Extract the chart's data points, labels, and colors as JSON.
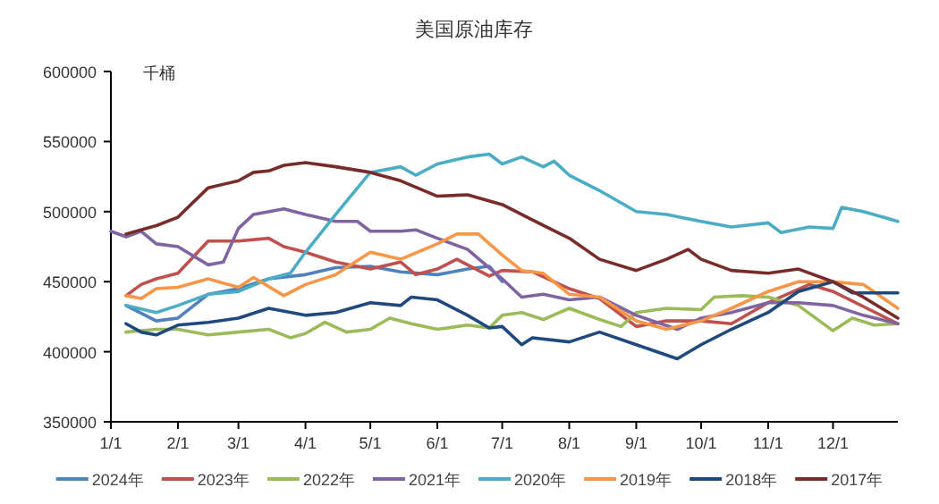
{
  "chart_data": {
    "type": "line",
    "title": "美国原油库存",
    "ylabel": "千桶",
    "xlim": [
      "--01-01",
      "--12-31"
    ],
    "ylim": [
      350000,
      600000
    ],
    "yticks": [
      350000,
      400000,
      450000,
      500000,
      550000,
      600000
    ],
    "xticks": [
      {
        "value": "--01-01",
        "label": "1/1"
      },
      {
        "value": "--02-01",
        "label": "2/1"
      },
      {
        "value": "--03-01",
        "label": "3/1"
      },
      {
        "value": "--04-01",
        "label": "4/1"
      },
      {
        "value": "--05-01",
        "label": "5/1"
      },
      {
        "value": "--06-01",
        "label": "6/1"
      },
      {
        "value": "--07-01",
        "label": "7/1"
      },
      {
        "value": "--08-01",
        "label": "8/1"
      },
      {
        "value": "--09-01",
        "label": "9/1"
      },
      {
        "value": "--10-01",
        "label": "10/1"
      },
      {
        "value": "--11-01",
        "label": "11/1"
      },
      {
        "value": "--12-01",
        "label": "12/1"
      }
    ],
    "grid": false,
    "legend": "bottom",
    "marker": "none",
    "line_style": "solid",
    "series": [
      {
        "name": "2024年",
        "color": "#4f81bd",
        "x": [
          "--01-08",
          "--01-22",
          "--02-01",
          "--02-15",
          "--03-01",
          "--03-15",
          "--04-01",
          "--04-15",
          "--05-01",
          "--05-15",
          "--06-01",
          "--06-15",
          "--06-25",
          "--07-01"
        ],
        "values": [
          433000,
          422000,
          424000,
          441000,
          445000,
          452000,
          455000,
          460000,
          461000,
          457000,
          455000,
          459000,
          461000,
          450000
        ]
      },
      {
        "name": "2023年",
        "color": "#c0504d",
        "x": [
          "--01-08",
          "--01-15",
          "--01-22",
          "--02-01",
          "--02-15",
          "--03-01",
          "--03-15",
          "--03-22",
          "--04-01",
          "--04-15",
          "--05-01",
          "--05-15",
          "--05-22",
          "--06-01",
          "--06-10",
          "--06-25",
          "--07-01",
          "--07-15",
          "--08-01",
          "--08-15",
          "--09-01",
          "--09-15",
          "--10-01",
          "--10-15",
          "--11-01",
          "--11-20",
          "--12-01",
          "--12-31"
        ],
        "values": [
          440000,
          448000,
          452000,
          456000,
          479000,
          479000,
          481000,
          475000,
          471000,
          464000,
          459000,
          464000,
          455000,
          459000,
          466000,
          454000,
          458000,
          457000,
          445000,
          438000,
          418000,
          422000,
          422000,
          420000,
          435000,
          448000,
          443000,
          420000
        ]
      },
      {
        "name": "2022年",
        "color": "#9bbb59",
        "x": [
          "--01-08",
          "--01-22",
          "--02-01",
          "--02-15",
          "--03-01",
          "--03-15",
          "--03-25",
          "--04-01",
          "--04-10",
          "--04-20",
          "--05-01",
          "--05-10",
          "--05-20",
          "--06-01",
          "--06-15",
          "--06-25",
          "--07-01",
          "--07-10",
          "--07-20",
          "--08-01",
          "--08-15",
          "--08-25",
          "--09-01",
          "--09-15",
          "--10-01",
          "--10-07",
          "--10-20",
          "--11-01",
          "--11-15",
          "--12-01",
          "--12-10",
          "--12-20",
          "--12-31"
        ],
        "values": [
          414000,
          416000,
          416000,
          412000,
          414000,
          416000,
          410000,
          413000,
          421000,
          414000,
          416000,
          424000,
          420000,
          416000,
          419000,
          417000,
          426000,
          428000,
          423000,
          431000,
          423000,
          418000,
          428000,
          431000,
          430000,
          439000,
          440000,
          439000,
          433000,
          415000,
          424000,
          419000,
          420000
        ]
      },
      {
        "name": "2021年",
        "color": "#8064a2",
        "x": [
          "--01-01",
          "--01-08",
          "--01-15",
          "--01-22",
          "--02-01",
          "--02-15",
          "--02-22",
          "--03-01",
          "--03-08",
          "--03-22",
          "--04-01",
          "--04-15",
          "--04-25",
          "--05-01",
          "--05-15",
          "--05-22",
          "--06-01",
          "--06-15",
          "--07-01",
          "--07-10",
          "--07-20",
          "--08-01",
          "--08-15",
          "--09-01",
          "--09-20",
          "--10-01",
          "--10-15",
          "--11-01",
          "--11-15",
          "--12-01",
          "--12-15",
          "--12-31"
        ],
        "values": [
          486000,
          482000,
          486000,
          477000,
          475000,
          462000,
          464000,
          488000,
          498000,
          502000,
          498000,
          493000,
          493000,
          486000,
          486000,
          487000,
          481000,
          473000,
          452000,
          439000,
          441000,
          437000,
          439000,
          426000,
          416000,
          424000,
          428000,
          435000,
          435000,
          433000,
          426000,
          420000
        ]
      },
      {
        "name": "2020年",
        "color": "#4bacc6",
        "x": [
          "--01-08",
          "--01-22",
          "--02-01",
          "--02-15",
          "--03-01",
          "--03-15",
          "--03-25",
          "--04-01",
          "--04-15",
          "--05-01",
          "--05-15",
          "--05-22",
          "--06-01",
          "--06-15",
          "--06-25",
          "--07-01",
          "--07-10",
          "--07-20",
          "--07-25",
          "--08-01",
          "--08-15",
          "--09-01",
          "--09-15",
          "--10-01",
          "--10-15",
          "--11-01",
          "--11-07",
          "--11-20",
          "--12-01",
          "--12-05",
          "--12-15",
          "--12-31"
        ],
        "values": [
          433000,
          428000,
          433000,
          441000,
          443000,
          452000,
          456000,
          471000,
          498000,
          528000,
          532000,
          526000,
          534000,
          539000,
          541000,
          534000,
          539000,
          532000,
          536000,
          526000,
          515000,
          500000,
          498000,
          493000,
          489000,
          492000,
          485000,
          489000,
          488000,
          503000,
          500000,
          493000
        ]
      },
      {
        "name": "2019年",
        "color": "#f79646",
        "x": [
          "--01-08",
          "--01-15",
          "--01-22",
          "--02-01",
          "--02-15",
          "--03-01",
          "--03-08",
          "--03-22",
          "--04-01",
          "--04-15",
          "--05-01",
          "--05-15",
          "--06-01",
          "--06-10",
          "--06-20",
          "--07-01",
          "--07-10",
          "--07-20",
          "--08-01",
          "--08-15",
          "--09-01",
          "--09-15",
          "--10-01",
          "--10-15",
          "--11-01",
          "--11-15",
          "--12-01",
          "--12-15",
          "--12-31"
        ],
        "values": [
          440000,
          438000,
          445000,
          446000,
          452000,
          446000,
          453000,
          440000,
          448000,
          455000,
          471000,
          466000,
          477000,
          484000,
          484000,
          469000,
          458000,
          456000,
          441000,
          439000,
          422000,
          416000,
          422000,
          431000,
          443000,
          450000,
          450000,
          448000,
          431000
        ]
      },
      {
        "name": "2018年",
        "color": "#1f497d",
        "x": [
          "--01-08",
          "--01-15",
          "--01-22",
          "--02-01",
          "--02-15",
          "--03-01",
          "--03-15",
          "--04-01",
          "--04-15",
          "--05-01",
          "--05-15",
          "--05-20",
          "--06-01",
          "--06-15",
          "--06-25",
          "--07-01",
          "--07-10",
          "--07-15",
          "--08-01",
          "--08-15",
          "--09-01",
          "--09-20",
          "--10-01",
          "--10-15",
          "--11-01",
          "--11-15",
          "--12-01",
          "--12-10",
          "--12-31"
        ],
        "values": [
          420000,
          414000,
          412000,
          419000,
          421000,
          424000,
          431000,
          426000,
          428000,
          435000,
          433000,
          439000,
          437000,
          426000,
          417000,
          418000,
          405000,
          410000,
          407000,
          414000,
          405000,
          395000,
          405000,
          416000,
          428000,
          443000,
          450000,
          442000,
          442000
        ]
      },
      {
        "name": "2017年",
        "color": "#772c2a",
        "x": [
          "--01-08",
          "--01-22",
          "--02-01",
          "--02-15",
          "--03-01",
          "--03-08",
          "--03-15",
          "--03-22",
          "--04-01",
          "--04-15",
          "--05-01",
          "--05-15",
          "--06-01",
          "--06-15",
          "--07-01",
          "--07-15",
          "--08-01",
          "--08-15",
          "--09-01",
          "--09-15",
          "--09-25",
          "--10-01",
          "--10-15",
          "--11-01",
          "--11-15",
          "--12-01",
          "--12-15",
          "--12-31"
        ],
        "values": [
          484000,
          490000,
          496000,
          517000,
          522000,
          528000,
          529000,
          533000,
          535000,
          532000,
          528000,
          522000,
          511000,
          512000,
          505000,
          494000,
          481000,
          466000,
          458000,
          466000,
          473000,
          466000,
          458000,
          456000,
          459000,
          450000,
          439000,
          424000
        ]
      }
    ]
  }
}
